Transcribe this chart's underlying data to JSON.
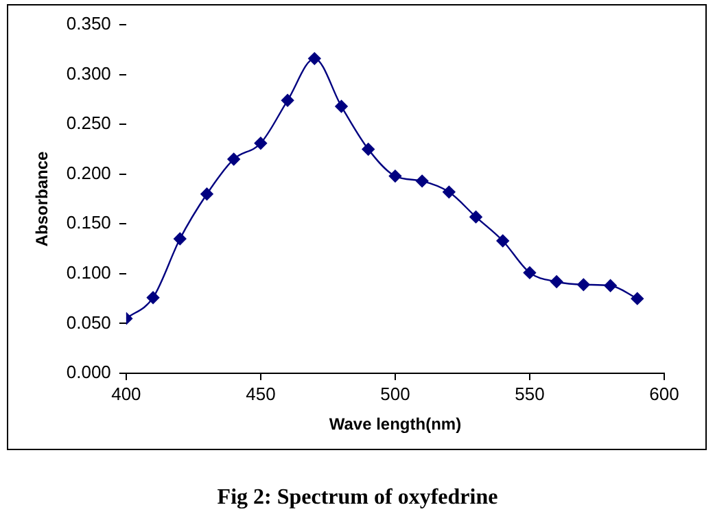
{
  "chart_data": {
    "type": "line",
    "title": "Fig 2: Spectrum of oxyfedrine",
    "xlabel": "Wave length(nm)",
    "ylabel": "Absorbance",
    "x": [
      400,
      410,
      420,
      430,
      440,
      450,
      460,
      470,
      480,
      490,
      500,
      510,
      520,
      530,
      540,
      550,
      560,
      570,
      580,
      590
    ],
    "series": [
      {
        "color": "#000080",
        "values": [
          0.055,
          0.076,
          0.135,
          0.18,
          0.215,
          0.231,
          0.274,
          0.316,
          0.268,
          0.225,
          0.198,
          0.193,
          0.182,
          0.157,
          0.133,
          0.101,
          0.092,
          0.089,
          0.088,
          0.075
        ]
      }
    ],
    "xlim": [
      400,
      600
    ],
    "xticks": [
      400,
      450,
      500,
      550,
      600
    ],
    "ylim": [
      0,
      0.35
    ],
    "yticks": [
      {
        "value": 0,
        "label": "0.000"
      },
      {
        "value": 0.05,
        "label": "0.050"
      },
      {
        "value": 0.1,
        "label": "0.100"
      },
      {
        "value": 0.15,
        "label": "0.150"
      },
      {
        "value": 0.2,
        "label": "0.200"
      },
      {
        "value": 0.25,
        "label": "0.250"
      },
      {
        "value": 0.3,
        "label": "0.300"
      },
      {
        "value": 0.35,
        "label": "0.350"
      }
    ],
    "grid": false,
    "legend": false,
    "marker": "diamond",
    "line_style": "solid"
  }
}
